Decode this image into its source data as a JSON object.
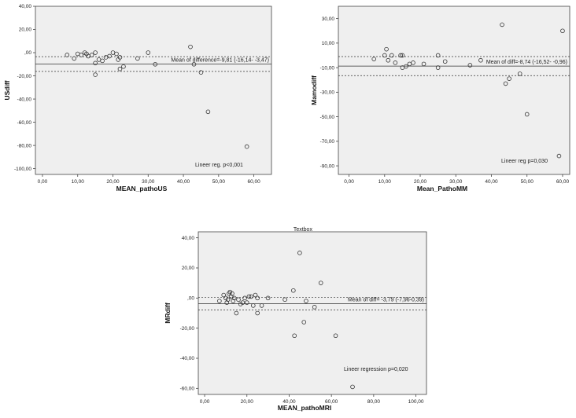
{
  "chart_data": [
    {
      "type": "scatter",
      "xlabel": "MEAN_pathoUS",
      "ylabel": "USdiff",
      "xlim": [
        -2,
        65
      ],
      "ylim": [
        -105,
        40
      ],
      "xticks": [
        0,
        10,
        20,
        30,
        40,
        50,
        60
      ],
      "yticks": [
        40,
        20,
        0,
        -20,
        -40,
        -60,
        -80,
        -100
      ],
      "xtick_labels": [
        "0,00",
        "10,00",
        "20,00",
        "30,00",
        "40,00",
        "50,00",
        "60,00"
      ],
      "ytick_labels": [
        "40,00",
        "20,00",
        ",00",
        "-20,00",
        "-40,00",
        "-60,00",
        "-80,00",
        "-100,00"
      ],
      "mean_line": -9.81,
      "limit_lines": [
        -3.47,
        -16.14
      ],
      "mean_label": "Mean of difference=-9,81 (-16,14- -3,47)",
      "annotation": "Lineer reg. p<0,001",
      "grid": false,
      "points": [
        [
          7,
          -2
        ],
        [
          9,
          -5
        ],
        [
          10,
          -1
        ],
        [
          11,
          -2
        ],
        [
          12,
          0
        ],
        [
          12.5,
          -1
        ],
        [
          13,
          -3
        ],
        [
          14,
          -2
        ],
        [
          15,
          -9
        ],
        [
          15,
          0
        ],
        [
          16,
          -6
        ],
        [
          17,
          -7
        ],
        [
          18,
          -4
        ],
        [
          19,
          -3
        ],
        [
          20,
          0
        ],
        [
          21,
          -1
        ],
        [
          21.5,
          -6
        ],
        [
          22,
          -14
        ],
        [
          22,
          -4
        ],
        [
          23,
          -12
        ],
        [
          15,
          -19
        ],
        [
          27,
          -5
        ],
        [
          30,
          0
        ],
        [
          32,
          -10
        ],
        [
          42,
          5
        ],
        [
          43,
          -10
        ],
        [
          45,
          -17
        ],
        [
          47,
          -51
        ],
        [
          58,
          -81
        ]
      ]
    },
    {
      "type": "scatter",
      "xlabel": "Mean_PathoMM",
      "ylabel": "Mamodiff",
      "xlim": [
        -3,
        62
      ],
      "ylim": [
        -97,
        40
      ],
      "xticks": [
        0,
        10,
        20,
        30,
        40,
        50,
        60
      ],
      "yticks": [
        30,
        10,
        -10,
        -30,
        -50,
        -70,
        -90
      ],
      "xtick_labels": [
        "0,00",
        "10,00",
        "20,00",
        "30,00",
        "40,00",
        "50,00",
        "60,00"
      ],
      "ytick_labels": [
        "30,00",
        "10,00",
        "-10,00",
        "-30,00",
        "-50,00",
        "-70,00",
        "-90,00"
      ],
      "mean_line": -8.74,
      "limit_lines": [
        -0.96,
        -16.52
      ],
      "mean_label": "Mean of diff=-8,74 (-16,52- -0,96)",
      "annotation": "Lineer reg p=0,030",
      "grid": false,
      "points": [
        [
          7,
          -3
        ],
        [
          10,
          0
        ],
        [
          10.5,
          5
        ],
        [
          11,
          -4
        ],
        [
          12,
          0
        ],
        [
          13,
          -6
        ],
        [
          14.5,
          0
        ],
        [
          15,
          0
        ],
        [
          15,
          -10
        ],
        [
          16,
          -9
        ],
        [
          17,
          -7
        ],
        [
          18,
          -6
        ],
        [
          21,
          -7
        ],
        [
          25,
          0
        ],
        [
          25,
          -10
        ],
        [
          27,
          -5
        ],
        [
          34,
          -8
        ],
        [
          37,
          -4
        ],
        [
          43,
          25
        ],
        [
          44,
          -23
        ],
        [
          45,
          -19
        ],
        [
          48,
          -15
        ],
        [
          50,
          -48
        ],
        [
          59,
          -82
        ],
        [
          60,
          20
        ]
      ]
    },
    {
      "type": "scatter",
      "xlabel": "MEAN_pathoMRI",
      "ylabel": "MRdiff",
      "xlim": [
        -3,
        105
      ],
      "ylim": [
        -64,
        44
      ],
      "xticks": [
        0,
        20,
        40,
        60,
        80,
        100
      ],
      "yticks": [
        40,
        20,
        0,
        -20,
        -40,
        -60
      ],
      "xtick_labels": [
        "0,00",
        "20,00",
        "40,00",
        "60,00",
        "80,00",
        "100,00"
      ],
      "ytick_labels": [
        "40,00",
        "20,00",
        ",00",
        "-20,00",
        "-40,00",
        "-60,00"
      ],
      "mean_line": -3.79,
      "limit_lines": [
        0.39,
        -7.96
      ],
      "mean_label": "Mean of diff= -3,79 (-7,96-0,39)",
      "annotation": "Lineer regression p=0,020",
      "textbox": "Textbox",
      "grid": false,
      "points": [
        [
          7,
          -2
        ],
        [
          9,
          2
        ],
        [
          10,
          0
        ],
        [
          10.5,
          -3
        ],
        [
          11,
          -1
        ],
        [
          11.5,
          3
        ],
        [
          12,
          4
        ],
        [
          12.5,
          1
        ],
        [
          13,
          3
        ],
        [
          13.5,
          -2
        ],
        [
          14,
          0
        ],
        [
          15,
          -10
        ],
        [
          16,
          -1
        ],
        [
          17,
          -4
        ],
        [
          18,
          -3
        ],
        [
          19,
          0
        ],
        [
          20,
          -3
        ],
        [
          21,
          1
        ],
        [
          22,
          1
        ],
        [
          23,
          -5
        ],
        [
          24,
          2
        ],
        [
          25,
          0
        ],
        [
          25,
          -10
        ],
        [
          27,
          -5
        ],
        [
          30,
          0
        ],
        [
          38,
          -1
        ],
        [
          42,
          5
        ],
        [
          42.5,
          -25
        ],
        [
          45,
          30
        ],
        [
          47,
          -16
        ],
        [
          48,
          -2
        ],
        [
          52,
          -6
        ],
        [
          55,
          10
        ],
        [
          62,
          -25
        ],
        [
          70,
          -59
        ]
      ]
    }
  ]
}
